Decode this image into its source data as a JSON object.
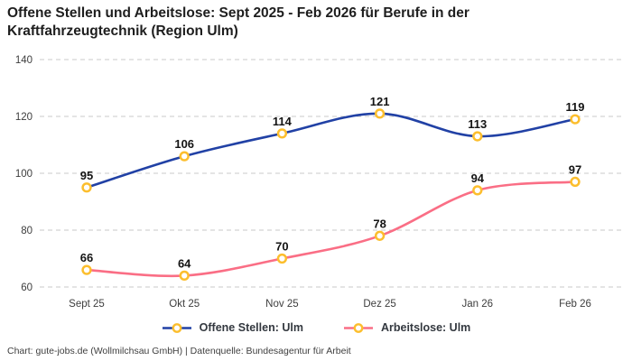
{
  "title": "Offene Stellen und Arbeitslose: Sept 2025 - Feb 2026 für Berufe in der Kraftfahrzeugtechnik (Region Ulm)",
  "footer": "Chart: gute-jobs.de (Wollmilchsau GmbH) | Datenquelle: Bundesagentur für Arbeit",
  "colors": {
    "series_open_positions": "#2141a5",
    "series_unemployed": "#fa6e85",
    "marker_ring": "#fcbe2d",
    "marker_fill": "#ffffff",
    "grid": "#c9c9c9",
    "tick_text": "#3d3d3d",
    "data_label_text": "#141414"
  },
  "legend": [
    {
      "label": "Offene Stellen: Ulm",
      "color": "#2141a5"
    },
    {
      "label": "Arbeitslose: Ulm",
      "color": "#fa6e85"
    }
  ],
  "chart_data": {
    "type": "line",
    "title": "Offene Stellen und Arbeitslose: Sept 2025 - Feb 2026 für Berufe in der Kraftfahrzeugtechnik (Region Ulm)",
    "categories": [
      "Sept 25",
      "Okt 25",
      "Nov 25",
      "Dez 25",
      "Jan 26",
      "Feb 26"
    ],
    "series": [
      {
        "name": "Offene Stellen: Ulm",
        "color": "#2141a5",
        "values": [
          95,
          106,
          114,
          121,
          113,
          119
        ]
      },
      {
        "name": "Arbeitslose: Ulm",
        "color": "#fa6e85",
        "values": [
          66,
          64,
          70,
          78,
          94,
          97
        ]
      }
    ],
    "ylim": [
      60,
      140
    ],
    "yticks": [
      60,
      80,
      100,
      120,
      140
    ],
    "xlabel": "",
    "ylabel": "",
    "grid": "horizontal-dashed",
    "line_style": "smooth",
    "marker": {
      "shape": "open-circle",
      "ring_color": "#fcbe2d",
      "fill": "#ffffff"
    },
    "data_labels": true,
    "legend_position": "bottom-center"
  }
}
